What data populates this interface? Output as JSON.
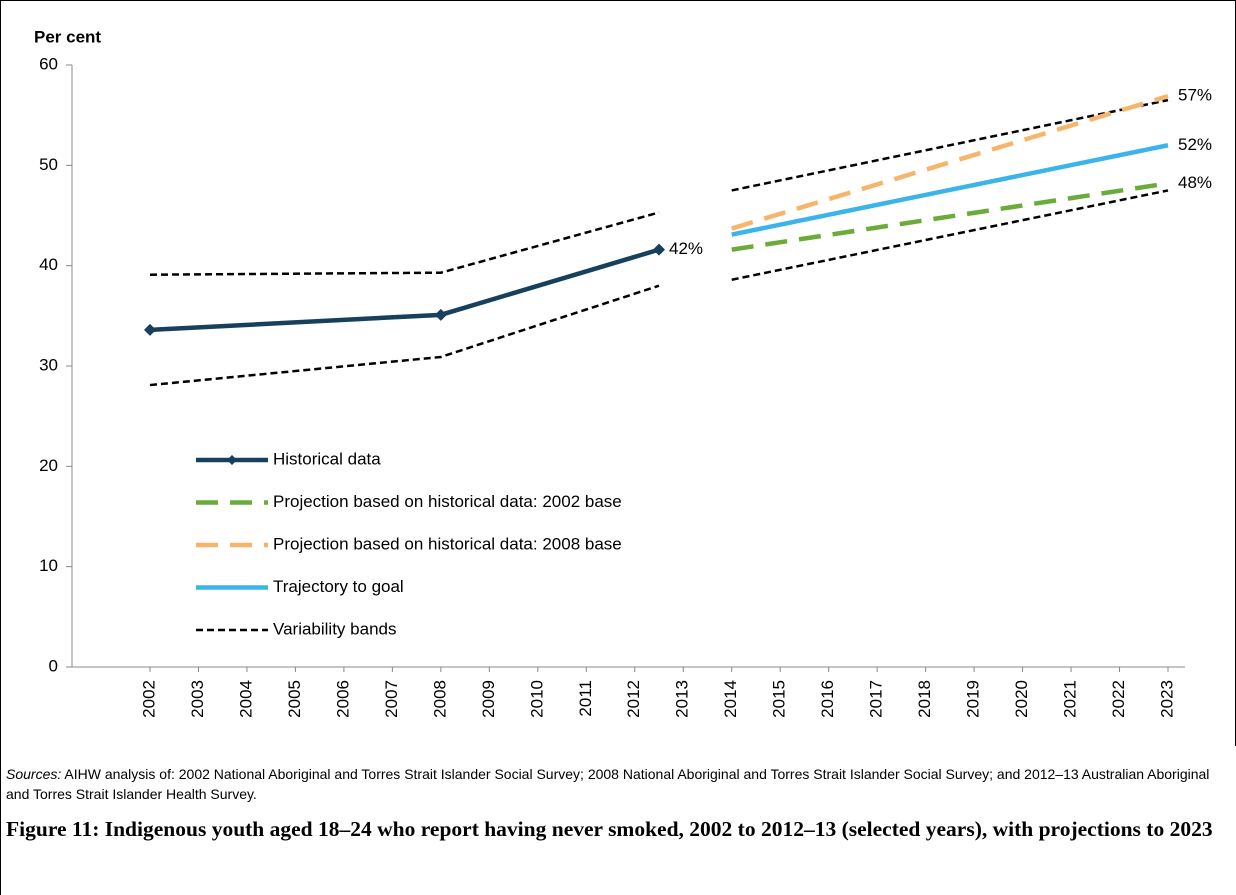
{
  "chart_data": {
    "type": "line",
    "y_label": "Per cent",
    "ylim": [
      0,
      60
    ],
    "yticks": [
      0,
      10,
      20,
      30,
      40,
      50,
      60
    ],
    "xlim": [
      2002,
      2023
    ],
    "xticks": [
      2002,
      2003,
      2004,
      2005,
      2006,
      2007,
      2008,
      2009,
      2010,
      2011,
      2012,
      2013,
      2014,
      2015,
      2016,
      2017,
      2018,
      2019,
      2020,
      2021,
      2022,
      2023
    ],
    "series": [
      {
        "name": "Historical data",
        "color": "#17405c",
        "style": "solid",
        "markers": true,
        "x": [
          2002,
          2008,
          2012.5
        ],
        "values": [
          33.6,
          35.1,
          41.6
        ],
        "value_labels": [
          null,
          null,
          "42%"
        ]
      },
      {
        "name": "Projection based on historical data: 2002 base",
        "color": "#6aab3a",
        "style": "dashed",
        "x": [
          2014,
          2023
        ],
        "values": [
          41.6,
          48.2
        ],
        "value_labels": [
          null,
          "48%"
        ]
      },
      {
        "name": "Projection based on historical data: 2008 base",
        "color": "#f7b56b",
        "style": "dashed",
        "x": [
          2014,
          2023
        ],
        "values": [
          43.7,
          56.9
        ],
        "value_labels": [
          null,
          "57%"
        ]
      },
      {
        "name": "Trajectory to goal",
        "color": "#3bb4ea",
        "style": "solid",
        "x": [
          2014,
          2023
        ],
        "values": [
          43.1,
          52
        ],
        "value_labels": [
          null,
          "52%"
        ]
      }
    ],
    "bands": {
      "name": "Variability bands",
      "color": "#000000",
      "style": "dotted",
      "lines": [
        {
          "x": [
            2002,
            2008,
            2012.5
          ],
          "values": [
            39.1,
            39.3,
            45.3
          ]
        },
        {
          "x": [
            2002,
            2008,
            2012.5
          ],
          "values": [
            28.1,
            30.9,
            38.0
          ]
        },
        {
          "x": [
            2014,
            2023
          ],
          "values": [
            47.5,
            56.5
          ]
        },
        {
          "x": [
            2014,
            2023
          ],
          "values": [
            38.6,
            47.5
          ]
        }
      ]
    }
  },
  "source_label": "Sources:",
  "source_text": "AIHW analysis of: 2002 National Aboriginal and Torres Strait Islander Social Survey; 2008 National Aboriginal and Torres Strait Islander Social Survey; and 2012–13 Australian Aboriginal and Torres Strait Islander Health Survey.",
  "caption": "Figure 11: Indigenous youth aged 18–24 who report having never smoked, 2002 to 2012–13 (selected years), with projections to 2023"
}
